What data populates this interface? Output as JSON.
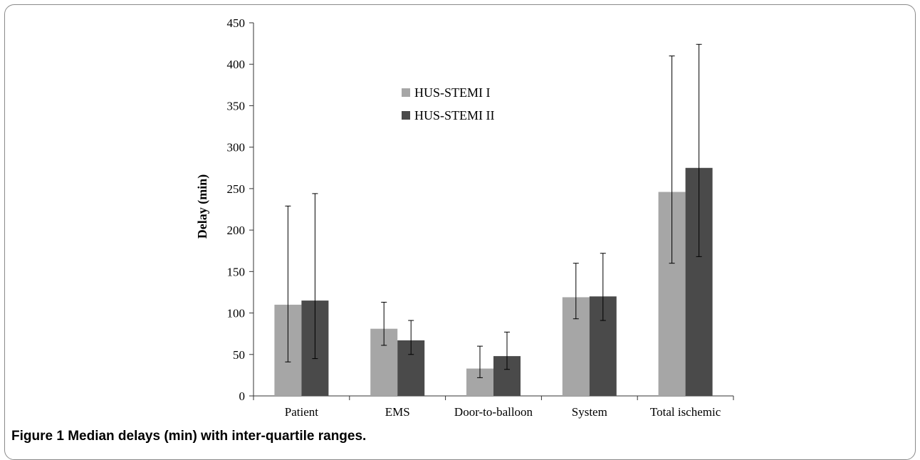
{
  "caption": {
    "label": "Figure 1",
    "text": "Median delays (min) with inter-quartile ranges."
  },
  "chart_data": {
    "type": "bar",
    "title": "",
    "xlabel": "",
    "ylabel": "Delay (min)",
    "ylim": [
      0,
      450
    ],
    "yticks": [
      0,
      50,
      100,
      150,
      200,
      250,
      300,
      350,
      400,
      450
    ],
    "categories": [
      "Patient",
      "EMS",
      "Door-to-balloon",
      "System",
      "Total ischemic"
    ],
    "legend_position": "upper-left-inside",
    "grid": false,
    "series": [
      {
        "name": "HUS-STEMI I",
        "color": "#a6a6a6",
        "values": [
          110,
          81,
          33,
          119,
          246
        ],
        "err_low": [
          41,
          61,
          22,
          93,
          160
        ],
        "err_high": [
          229,
          113,
          60,
          160,
          410
        ]
      },
      {
        "name": "HUS-STEMI II",
        "color": "#4a4a4a",
        "values": [
          115,
          67,
          48,
          120,
          275
        ],
        "err_low": [
          45,
          50,
          32,
          91,
          168
        ],
        "err_high": [
          244,
          91,
          77,
          172,
          424
        ]
      }
    ]
  }
}
